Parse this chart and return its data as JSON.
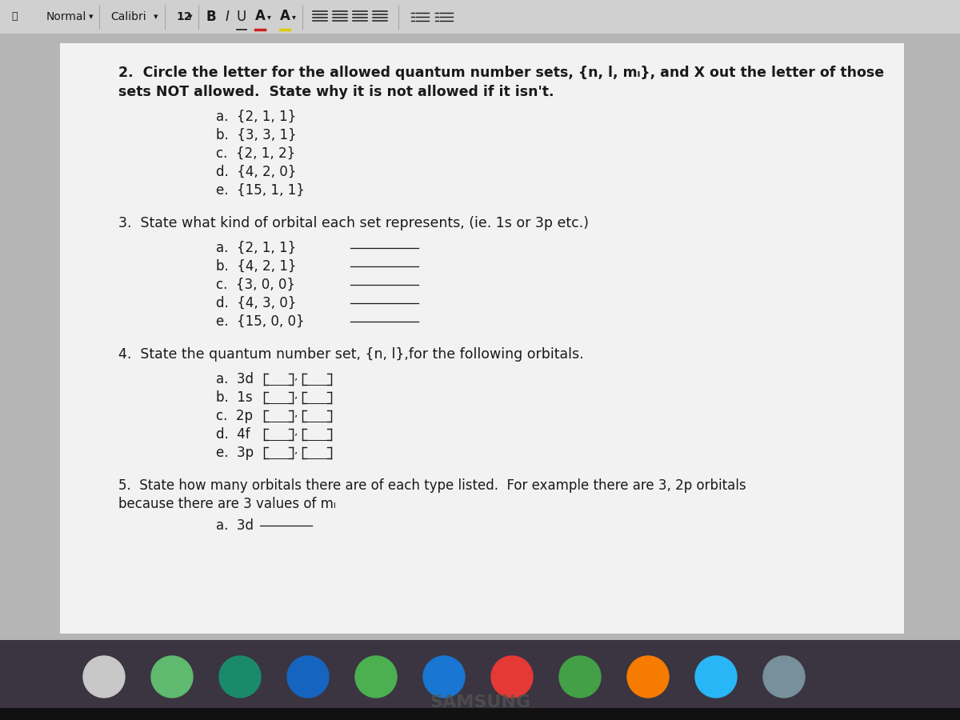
{
  "toolbar_bg": "#d0d0d0",
  "toolbar_text_color": "#1a1a1a",
  "page_bg": "#b8b8b8",
  "content_bg": "#f5f5f5",
  "content_text_color": "#1a1a1a",
  "title2_line1": "2.  Circle the letter for the allowed quantum number sets, {n, l, mₗ}, and X out the letter of those",
  "title2_line2": "sets NOT allowed.  State why it is not allowed if it isn't.",
  "q2_items": [
    "a.  {2, 1, 1}",
    "b.  {3, 3, 1}",
    "c.  {2, 1, 2}",
    "d.  {4, 2, 0}",
    "e.  {15, 1, 1}"
  ],
  "title3": "3.  State what kind of orbital each set represents, (ie. 1s or 3p etc.)",
  "q3_items": [
    "a.  {2, 1, 1}",
    "b.  {4, 2, 1}",
    "c.  {3, 0, 0}",
    "d.  {4, 3, 0}",
    "e.  {15, 0, 0}"
  ],
  "title4": "4.  State the quantum number set, {n, l},for the following orbitals.",
  "q4_items": [
    "a.  3d",
    "b.  1s",
    "c.  2p",
    "d.  4f",
    "e.  3p"
  ],
  "title5_line1": "5.  State how many orbitals there are of each type listed.  For example there are 3, 2p orbitals",
  "title5_line2": "because there are 3 values of mₗ",
  "q5_items": [
    "a.  3d"
  ],
  "samsung_text": "SAMSUNG",
  "bottom_bar_color": "#111111",
  "taskbar_bg": "#3a3540",
  "samsung_color": "#555555"
}
